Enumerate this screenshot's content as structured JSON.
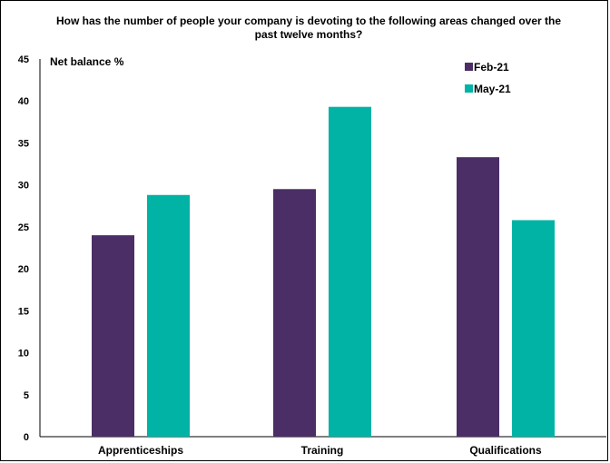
{
  "chart_data": {
    "type": "bar",
    "title": "How has the number of people your company is devoting to the following areas changed over the past twelve months?",
    "ylabel": "Net balance %",
    "xlabel": "",
    "categories": [
      "Apprenticeships",
      "Training",
      "Qualifications"
    ],
    "series": [
      {
        "name": "Feb-21",
        "color": "#4b2e65",
        "values": [
          24,
          29.5,
          33.3
        ]
      },
      {
        "name": "May-21",
        "color": "#00b3a5",
        "values": [
          28.8,
          39.3,
          25.8
        ]
      }
    ],
    "ylim": [
      0,
      45
    ],
    "yticks": [
      "0",
      "5",
      "10",
      "15",
      "20",
      "25",
      "30",
      "35",
      "40",
      "45"
    ],
    "legend_position": "top-right",
    "grid": false
  }
}
